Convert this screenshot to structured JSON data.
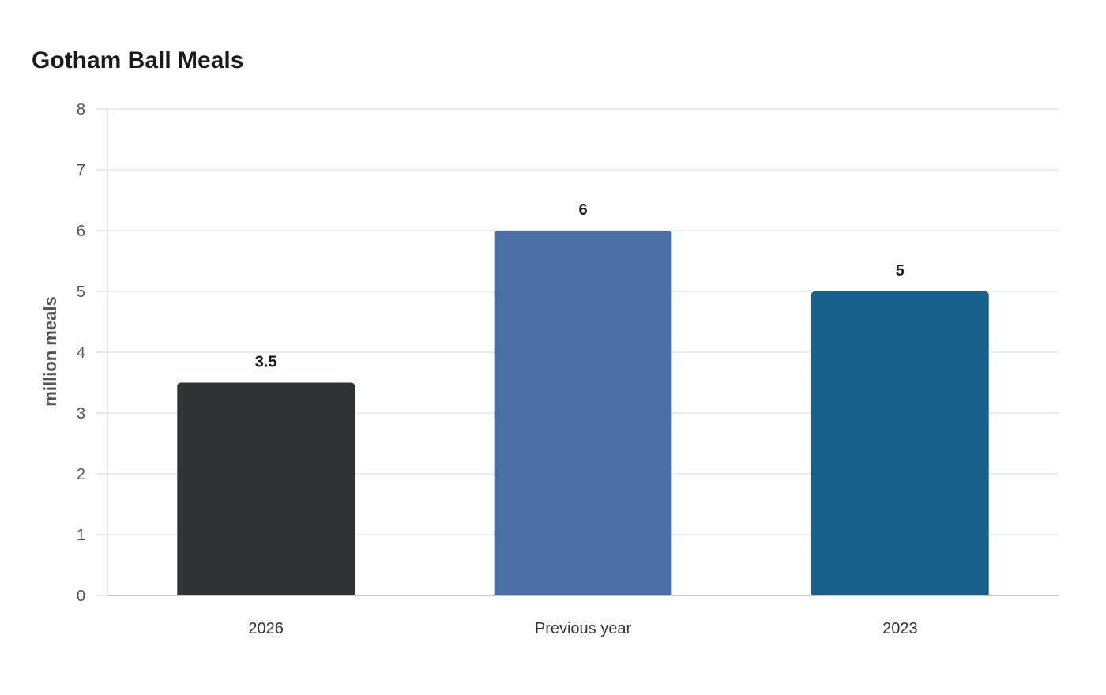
{
  "chart_data": {
    "type": "bar",
    "title": "Gotham Ball Meals",
    "xlabel": "",
    "ylabel": "million meals",
    "categories": [
      "2026",
      "Previous year",
      "2023"
    ],
    "values": [
      3.5,
      6,
      5
    ],
    "value_labels": [
      "3.5",
      "6",
      "5"
    ],
    "colors": [
      "#2e3436",
      "#4a6fa5",
      "#17628a"
    ],
    "ylim": [
      0,
      8
    ],
    "yticks": [
      0,
      1,
      2,
      3,
      4,
      5,
      6,
      7,
      8
    ],
    "grid": true,
    "legend": "none"
  }
}
